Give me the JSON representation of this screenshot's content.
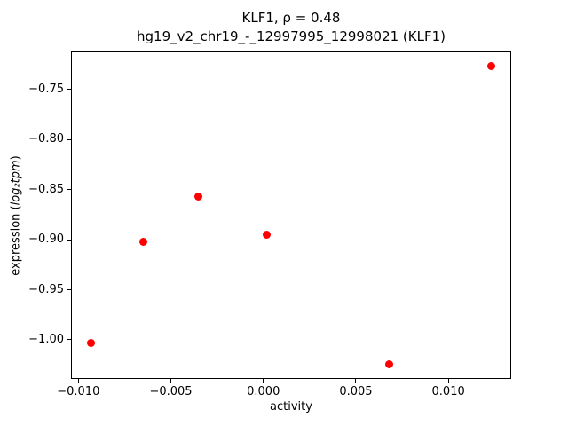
{
  "figure": {
    "title_line1": "KLF1, ρ = 0.48",
    "title_line2": "hg19_v2_chr19_-_12997995_12998021 (KLF1)",
    "xlabel": "activity",
    "ylabel_prefix": "expression (",
    "ylabel_math": "log₂tpm",
    "ylabel_suffix": ")"
  },
  "chart_data": {
    "type": "scatter",
    "title": "KLF1, ρ = 0.48\nhg19_v2_chr19_-_12997995_12998021 (KLF1)",
    "xlabel": "activity",
    "ylabel": "expression (log2 tpm)",
    "legend": "none",
    "grid": false,
    "marker_color": "#ff0000",
    "xlim": [
      -0.0104,
      0.0134
    ],
    "ylim": [
      -1.039,
      -0.712
    ],
    "x_ticks": [
      -0.01,
      -0.005,
      0.0,
      0.005,
      0.01
    ],
    "x_tick_labels": [
      "−0.010",
      "−0.005",
      "0.000",
      "0.005",
      "0.010"
    ],
    "y_ticks": [
      -0.75,
      -0.8,
      -0.85,
      -0.9,
      -0.95,
      -1.0
    ],
    "y_tick_labels": [
      "−0.75",
      "−0.80",
      "−0.85",
      "−0.90",
      "−0.95",
      "−1.00"
    ],
    "points": [
      {
        "x": -0.0093,
        "y": -1.003
      },
      {
        "x": -0.0065,
        "y": -0.902
      },
      {
        "x": -0.0035,
        "y": -0.857
      },
      {
        "x": 0.0002,
        "y": -0.895
      },
      {
        "x": 0.0068,
        "y": -1.024
      },
      {
        "x": 0.0123,
        "y": -0.727
      }
    ]
  }
}
